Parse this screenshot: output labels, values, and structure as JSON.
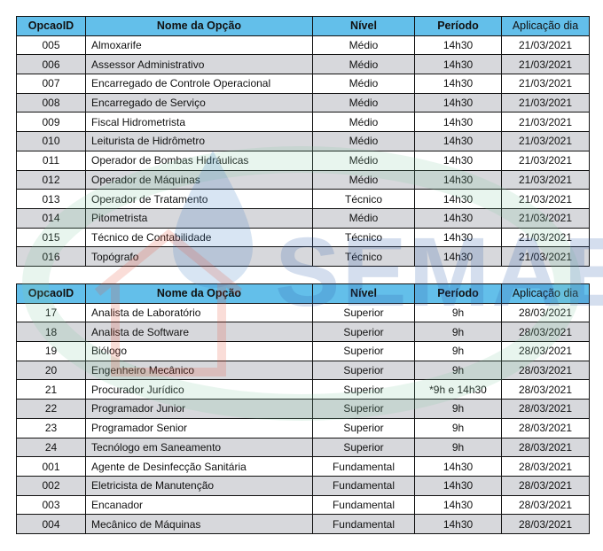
{
  "headers": {
    "id": "OpcaoID",
    "name": "Nome da Opção",
    "level": "Nível",
    "period": "Período",
    "date": "Aplicação dia"
  },
  "watermark": "SEMAE",
  "table1": [
    [
      "005",
      "Almoxarife",
      "Médio",
      "14h30",
      "21/03/2021"
    ],
    [
      "006",
      "Assessor Administrativo",
      "Médio",
      "14h30",
      "21/03/2021"
    ],
    [
      "007",
      "Encarregado de Controle Operacional",
      "Médio",
      "14h30",
      "21/03/2021"
    ],
    [
      "008",
      "Encarregado de Serviço",
      "Médio",
      "14h30",
      "21/03/2021"
    ],
    [
      "009",
      "Fiscal Hidrometrista",
      "Médio",
      "14h30",
      "21/03/2021"
    ],
    [
      "010",
      "Leiturista de Hidrômetro",
      "Médio",
      "14h30",
      "21/03/2021"
    ],
    [
      "011",
      "Operador de Bombas Hidráulicas",
      "Médio",
      "14h30",
      "21/03/2021"
    ],
    [
      "012",
      "Operador de Máquinas",
      "Médio",
      "14h30",
      "21/03/2021"
    ],
    [
      "013",
      "Operador de Tratamento",
      "Técnico",
      "14h30",
      "21/03/2021"
    ],
    [
      "014",
      "Pitometrista",
      "Médio",
      "14h30",
      "21/03/2021"
    ],
    [
      "015",
      "Técnico de Contabilidade",
      "Técnico",
      "14h30",
      "21/03/2021"
    ],
    [
      "016",
      "Topógrafo",
      "Técnico",
      "14h30",
      "21/03/2021"
    ]
  ],
  "table2": [
    [
      "17",
      "Analista de Laboratório",
      "Superior",
      "9h",
      "28/03/2021"
    ],
    [
      "18",
      "Analista de Software",
      "Superior",
      "9h",
      "28/03/2021"
    ],
    [
      "19",
      "Biólogo",
      "Superior",
      "9h",
      "28/03/2021"
    ],
    [
      "20",
      "Engenheiro Mecânico",
      "Superior",
      "9h",
      "28/03/2021"
    ],
    [
      "21",
      "Procurador Jurídico",
      "Superior",
      "*9h e 14h30",
      "28/03/2021"
    ],
    [
      "22",
      "Programador Junior",
      "Superior",
      "9h",
      "28/03/2021"
    ],
    [
      "23",
      "Programador Senior",
      "Superior",
      "9h",
      "28/03/2021"
    ],
    [
      "24",
      "Tecnólogo em Saneamento",
      "Superior",
      "9h",
      "28/03/2021"
    ],
    [
      "001",
      "Agente de Desinfecção Sanitária",
      "Fundamental",
      "14h30",
      "28/03/2021"
    ],
    [
      "002",
      "Eletricista de Manutenção",
      "Fundamental",
      "14h30",
      "28/03/2021"
    ],
    [
      "003",
      "Encanador",
      "Fundamental",
      "14h30",
      "28/03/2021"
    ],
    [
      "004",
      "Mecânico de Máquinas",
      "Fundamental",
      "14h30",
      "28/03/2021"
    ]
  ]
}
